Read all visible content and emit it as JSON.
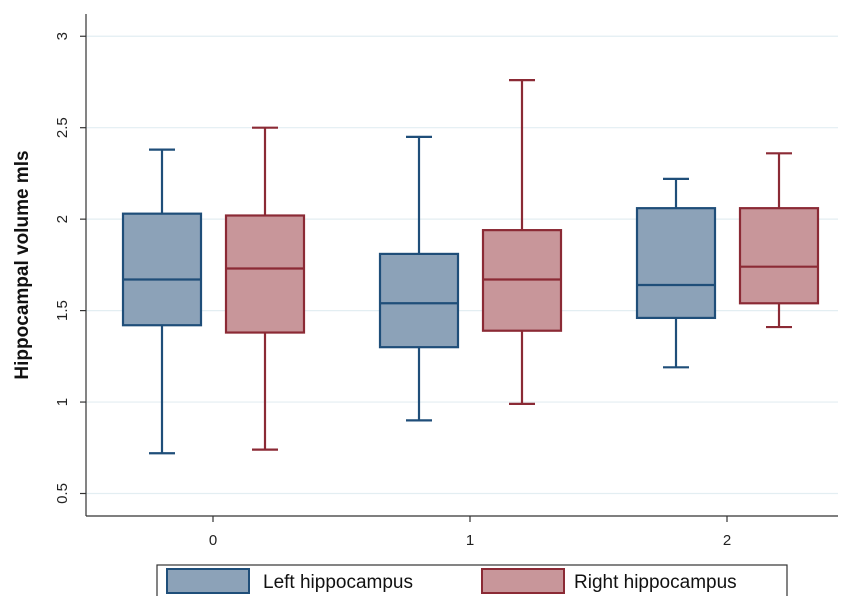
{
  "chart_data": {
    "type": "box",
    "title": "",
    "xlabel": "",
    "ylabel": "Hippocampal volume mls",
    "ylim": [
      0.5,
      3
    ],
    "yticks": [
      "0.5",
      "1",
      "1.5",
      "2",
      "2.5",
      "3"
    ],
    "categories": [
      "0",
      "1",
      "2"
    ],
    "grid": true,
    "legend_position": "bottom",
    "series": [
      {
        "name": "Left hippocampus",
        "color": "#8ca2b8",
        "stroke": "#1f4e79",
        "boxes": [
          {
            "whisker_low": 0.72,
            "q1": 1.42,
            "median": 1.67,
            "q3": 2.03,
            "whisker_high": 2.38
          },
          {
            "whisker_low": 0.9,
            "q1": 1.3,
            "median": 1.54,
            "q3": 1.81,
            "whisker_high": 2.45
          },
          {
            "whisker_low": 1.19,
            "q1": 1.46,
            "median": 1.64,
            "q3": 2.06,
            "whisker_high": 2.22
          }
        ]
      },
      {
        "name": "Right hippocampus",
        "color": "#c8969a",
        "stroke": "#8b2a35",
        "boxes": [
          {
            "whisker_low": 0.74,
            "q1": 1.38,
            "median": 1.73,
            "q3": 2.02,
            "whisker_high": 2.5
          },
          {
            "whisker_low": 0.99,
            "q1": 1.39,
            "median": 1.67,
            "q3": 1.94,
            "whisker_high": 2.76
          },
          {
            "whisker_low": 1.41,
            "q1": 1.54,
            "median": 1.74,
            "q3": 2.06,
            "whisker_high": 2.36
          }
        ]
      }
    ]
  }
}
